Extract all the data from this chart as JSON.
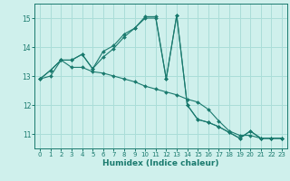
{
  "xlabel": "Humidex (Indice chaleur)",
  "bg_color": "#cff0ec",
  "grid_color": "#aaddd8",
  "line_color": "#1a7a6e",
  "ylim": [
    10.5,
    15.5
  ],
  "xlim": [
    -0.5,
    23.5
  ],
  "yticks": [
    11,
    12,
    13,
    14,
    15
  ],
  "xticks": [
    0,
    1,
    2,
    3,
    4,
    5,
    6,
    7,
    8,
    9,
    10,
    11,
    12,
    13,
    14,
    15,
    16,
    17,
    18,
    19,
    20,
    21,
    22,
    23
  ],
  "series": [
    [
      12.9,
      13.2,
      13.55,
      13.55,
      13.75,
      13.25,
      13.85,
      14.05,
      14.45,
      14.65,
      15.05,
      15.05,
      12.9,
      15.1,
      12.0,
      11.5,
      11.4,
      11.25,
      11.05,
      10.85,
      11.1,
      10.85,
      10.85,
      10.85
    ],
    [
      12.9,
      13.0,
      13.55,
      13.3,
      13.3,
      13.15,
      13.1,
      13.0,
      12.9,
      12.8,
      12.65,
      12.55,
      12.45,
      12.35,
      12.2,
      12.1,
      11.85,
      11.45,
      11.1,
      10.95,
      10.95,
      10.85,
      10.85,
      10.85
    ],
    [
      12.9,
      13.2,
      13.55,
      13.55,
      13.75,
      13.25,
      13.65,
      13.95,
      14.35,
      14.65,
      15.0,
      15.0,
      12.9,
      15.1,
      12.0,
      11.5,
      11.4,
      11.25,
      11.05,
      10.85,
      11.1,
      10.85,
      10.85,
      10.85
    ]
  ]
}
